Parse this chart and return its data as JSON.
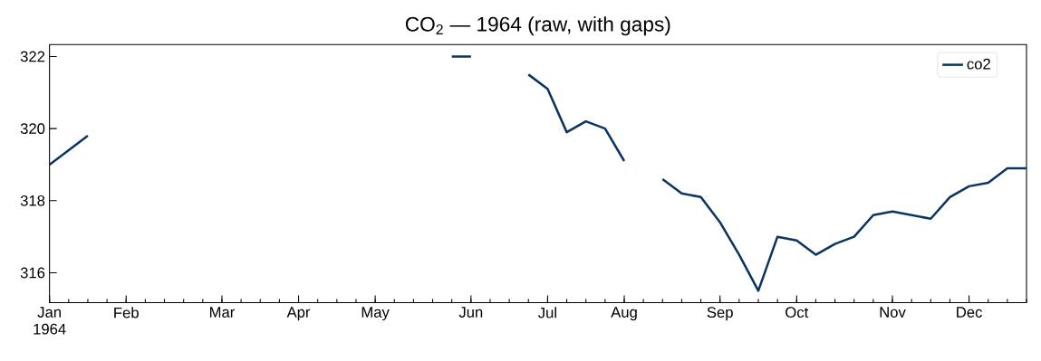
{
  "chart_data": {
    "type": "line",
    "title": "CO$_{2}$ — 1964 (raw, with gaps)",
    "x": [
      "1964-01-04",
      "1964-01-11",
      "1964-01-18",
      "1964-01-25",
      "1964-02-01",
      "1964-02-08",
      "1964-02-15",
      "1964-02-22",
      "1964-02-29",
      "1964-03-07",
      "1964-03-14",
      "1964-03-21",
      "1964-03-28",
      "1964-04-04",
      "1964-04-11",
      "1964-04-18",
      "1964-04-25",
      "1964-05-02",
      "1964-05-09",
      "1964-05-16",
      "1964-05-23",
      "1964-05-30",
      "1964-06-06",
      "1964-06-13",
      "1964-06-20",
      "1964-06-27",
      "1964-07-04",
      "1964-07-11",
      "1964-07-18",
      "1964-07-25",
      "1964-08-01",
      "1964-08-08",
      "1964-08-15",
      "1964-08-22",
      "1964-08-29",
      "1964-09-05",
      "1964-09-12",
      "1964-09-19",
      "1964-09-26",
      "1964-10-03",
      "1964-10-10",
      "1964-10-17",
      "1964-10-24",
      "1964-10-31",
      "1964-11-07",
      "1964-11-14",
      "1964-11-21",
      "1964-11-28",
      "1964-12-05",
      "1964-12-12",
      "1964-12-19",
      "1964-12-26"
    ],
    "series": [
      {
        "name": "co2",
        "color": "#0b3460",
        "values": [
          319.0,
          319.4,
          319.8,
          null,
          null,
          null,
          null,
          null,
          null,
          null,
          null,
          null,
          null,
          null,
          null,
          null,
          null,
          null,
          null,
          null,
          null,
          322.0,
          322.0,
          null,
          null,
          321.5,
          321.1,
          319.9,
          320.2,
          320.0,
          319.1,
          null,
          318.6,
          318.2,
          318.1,
          317.4,
          316.5,
          315.5,
          317.0,
          316.9,
          316.5,
          316.8,
          317.0,
          317.6,
          317.7,
          317.6,
          317.5,
          318.1,
          318.4,
          318.5,
          318.9,
          318.9
        ]
      }
    ],
    "xlim": [
      "1964-01-04",
      "1964-12-26"
    ],
    "xticks": [
      {
        "value": "1964-01-04",
        "label": "Jan 1964"
      },
      {
        "value": "1964-02-01",
        "label": "Feb"
      },
      {
        "value": "1964-03-07",
        "label": "Mar"
      },
      {
        "value": "1964-04-04",
        "label": "Apr"
      },
      {
        "value": "1964-05-02",
        "label": "May"
      },
      {
        "value": "1964-06-06",
        "label": "Jun"
      },
      {
        "value": "1964-07-04",
        "label": "Jul"
      },
      {
        "value": "1964-08-01",
        "label": "Aug"
      },
      {
        "value": "1964-09-05",
        "label": "Sep"
      },
      {
        "value": "1964-10-03",
        "label": "Oct"
      },
      {
        "value": "1964-11-07",
        "label": "Nov"
      },
      {
        "value": "1964-12-05",
        "label": "Dec"
      }
    ],
    "ylim": [
      315.17,
      322.33
    ],
    "yticks": [
      316,
      318,
      320,
      322
    ],
    "legend": "top right",
    "grid": false,
    "marker": "none",
    "line_style": "solid"
  }
}
